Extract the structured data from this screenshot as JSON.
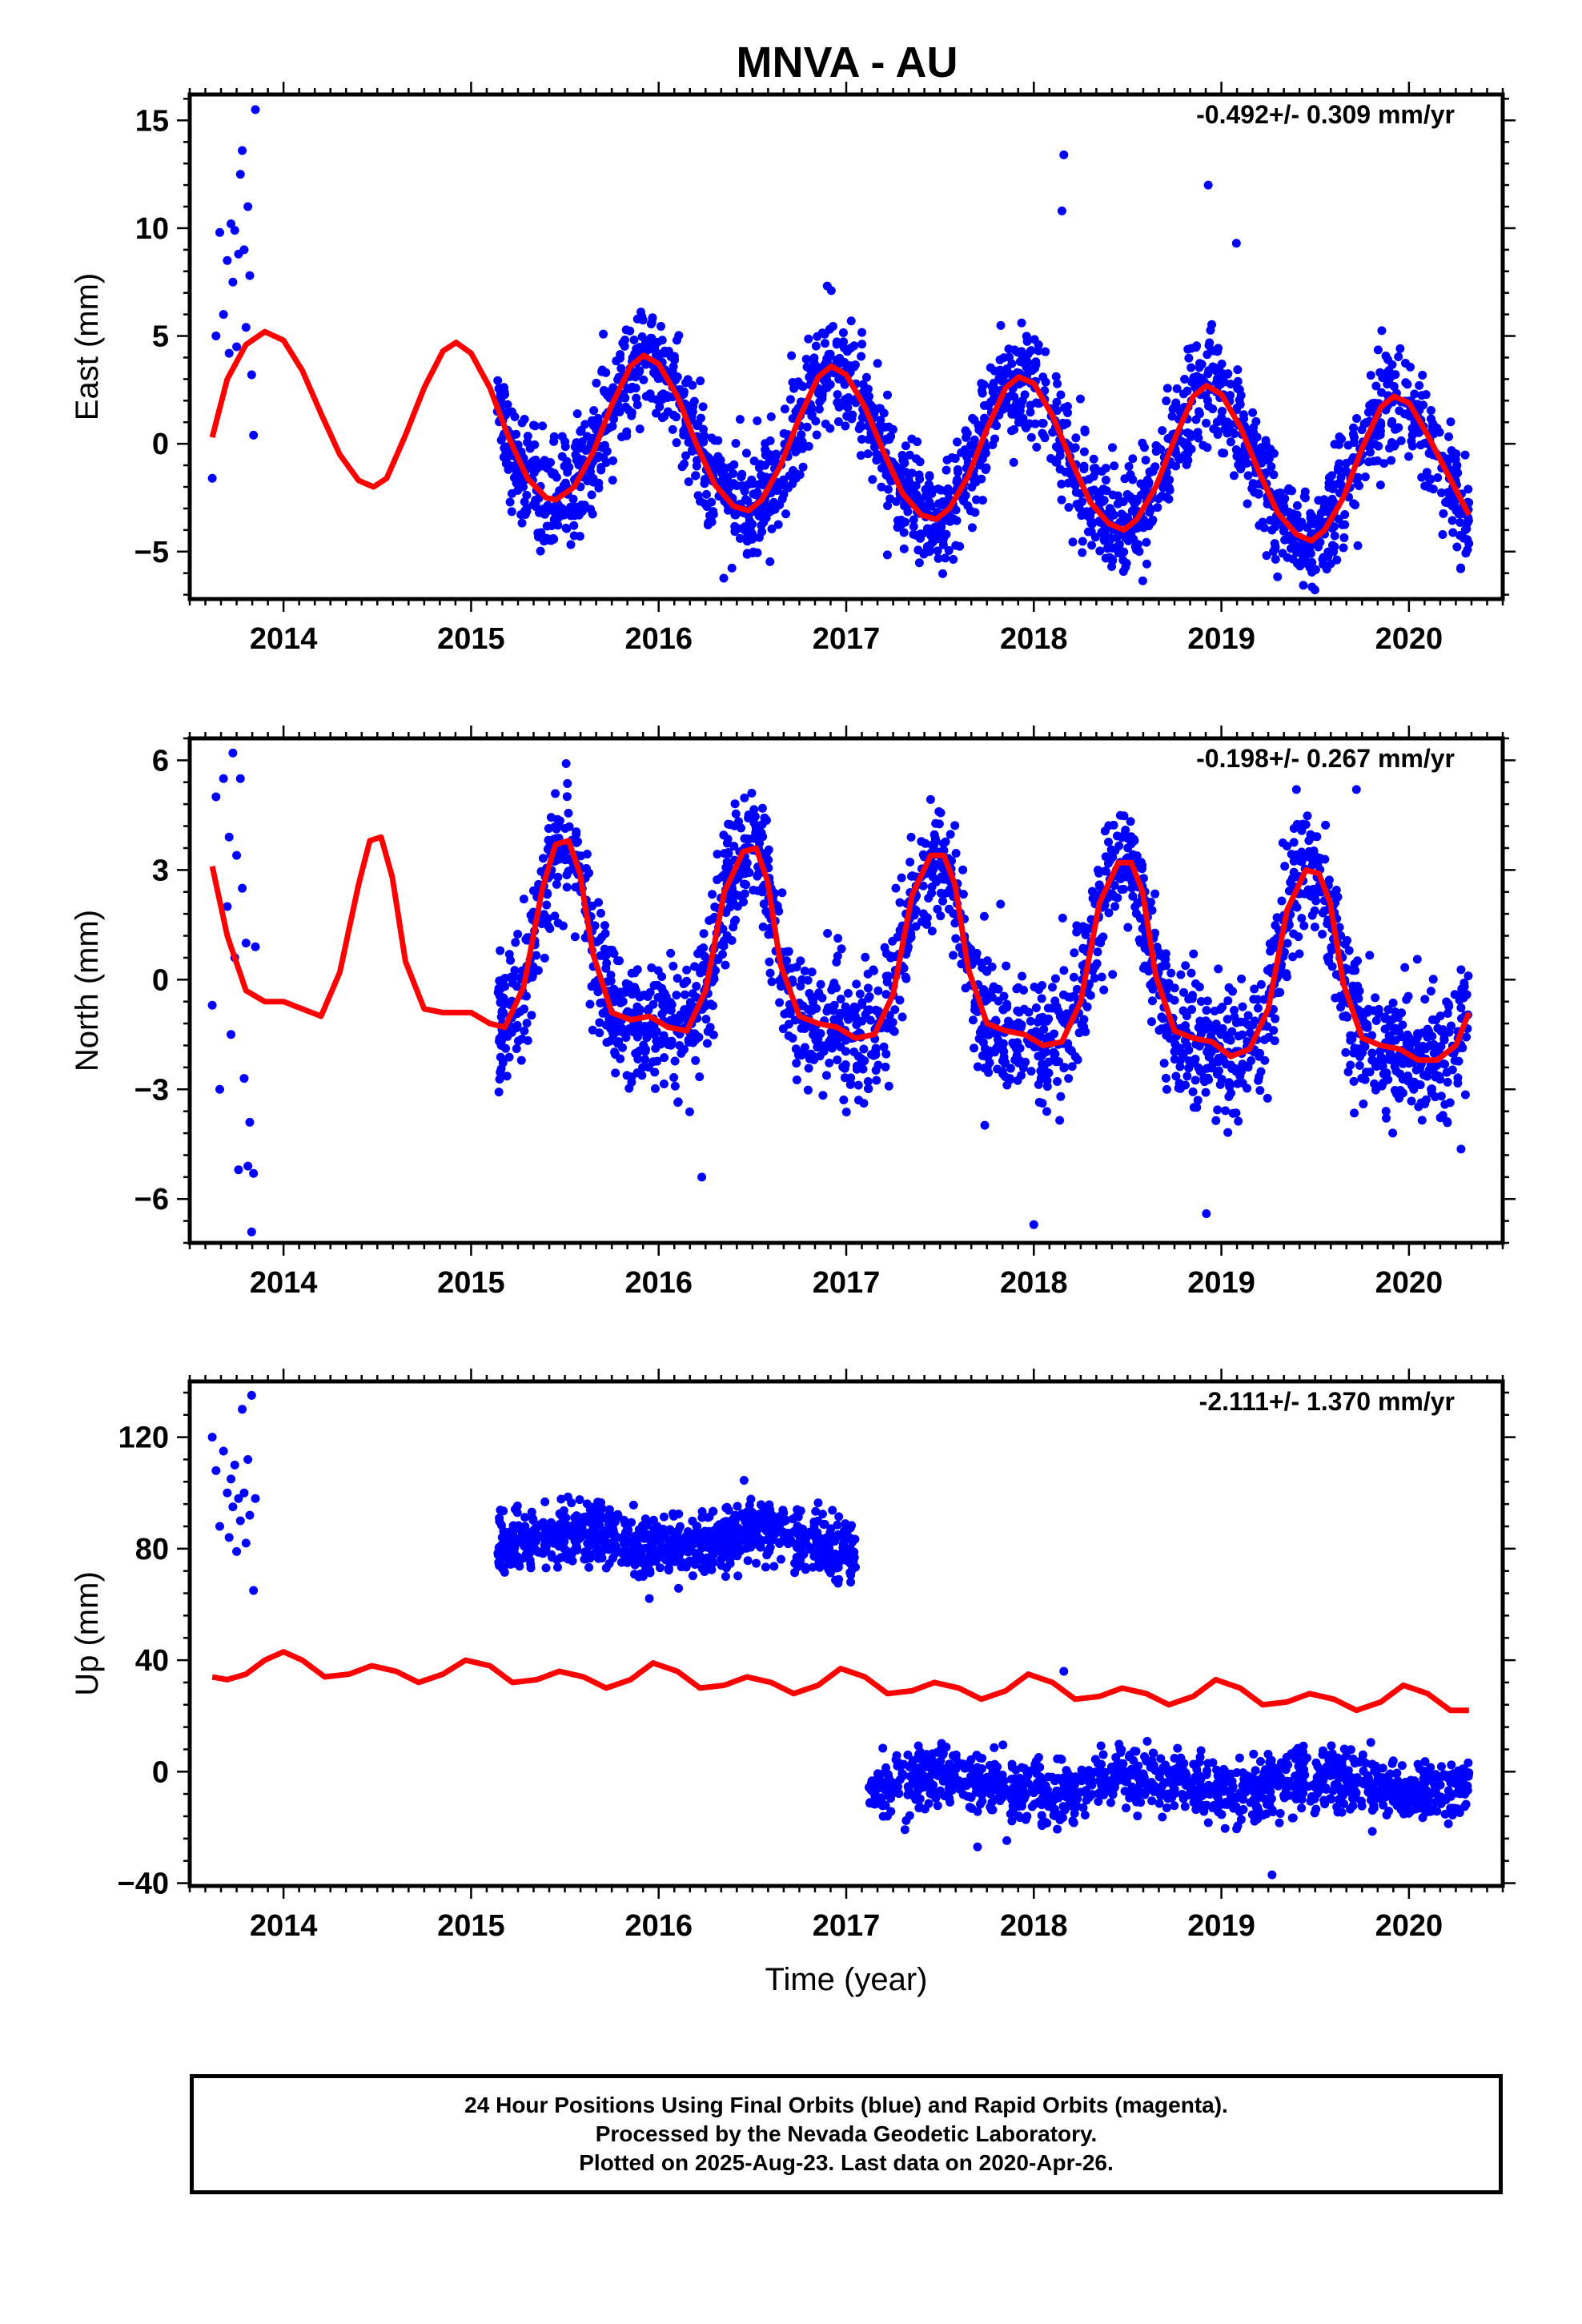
{
  "title": "MNVA - AU",
  "colors": {
    "data": "#0000ff",
    "model": "#ff0000",
    "frame": "#000000"
  },
  "footer": {
    "line1": "24 Hour Positions Using Final Orbits (blue) and Rapid Orbits (magenta).",
    "line2": "Processed by the Nevada Geodetic Laboratory.",
    "line3": "Plotted on 2025-Aug-23. Last data on 2020-Apr-26."
  },
  "chart_data": [
    {
      "type": "scatter",
      "ylabel": "East (mm)",
      "xlabel": "",
      "rate_label": "-0.492+/- 0.309 mm/yr",
      "xlim": [
        2013.5,
        2020.5
      ],
      "ylim": [
        -7.2,
        16.2
      ],
      "xticks": [
        2014,
        2015,
        2016,
        2017,
        2018,
        2019,
        2020
      ],
      "yticks": [
        -5,
        0,
        5,
        10,
        15
      ],
      "series": [
        {
          "kind": "points",
          "x": [
            2013.62,
            2013.64,
            2013.66,
            2013.68,
            2013.7,
            2013.71,
            2013.72,
            2013.73,
            2013.74,
            2013.75,
            2013.76,
            2013.77,
            2013.78,
            2013.79,
            2013.8,
            2013.81,
            2013.82,
            2013.83,
            2013.84,
            2013.85
          ],
          "y": [
            -1.6,
            5.0,
            9.8,
            6.0,
            8.5,
            4.2,
            10.2,
            7.5,
            9.9,
            4.5,
            8.8,
            12.5,
            13.6,
            9.0,
            5.4,
            11.0,
            7.8,
            3.2,
            0.4,
            15.5
          ]
        },
        {
          "kind": "cloud",
          "x_range": [
            2015.14,
            2020.32
          ],
          "n": 2200,
          "amp": 2.6,
          "noise": 1.3,
          "outliers": [
            [
              2018.16,
              13.4
            ],
            [
              2018.15,
              10.8
            ],
            [
              2018.93,
              12.0
            ],
            [
              2019.08,
              9.3
            ]
          ]
        },
        {
          "kind": "model",
          "x": [
            2013.62,
            2013.7,
            2013.8,
            2013.9,
            2014.0,
            2014.1,
            2014.2,
            2014.3,
            2014.4,
            2014.48,
            2014.55,
            2014.65,
            2014.75,
            2014.85,
            2014.92,
            2015.0,
            2015.1,
            2015.2,
            2015.3,
            2015.4,
            2015.45,
            2015.55,
            2015.65,
            2015.75,
            2015.85,
            2015.92,
            2016.0,
            2016.1,
            2016.2,
            2016.3,
            2016.4,
            2016.48,
            2016.55,
            2016.65,
            2016.75,
            2016.85,
            2016.92,
            2017.0,
            2017.1,
            2017.2,
            2017.3,
            2017.4,
            2017.48,
            2017.55,
            2017.65,
            2017.75,
            2017.85,
            2017.92,
            2018.0,
            2018.1,
            2018.2,
            2018.3,
            2018.4,
            2018.48,
            2018.55,
            2018.65,
            2018.75,
            2018.85,
            2018.92,
            2019.0,
            2019.1,
            2019.2,
            2019.3,
            2019.4,
            2019.48,
            2019.55,
            2019.65,
            2019.75,
            2019.85,
            2019.92,
            2020.0,
            2020.1,
            2020.2,
            2020.32
          ],
          "y": [
            0.3,
            3.0,
            4.6,
            5.2,
            4.8,
            3.4,
            1.4,
            -0.5,
            -1.7,
            -2.0,
            -1.6,
            0.4,
            2.6,
            4.3,
            4.7,
            4.2,
            2.6,
            0.3,
            -1.6,
            -2.5,
            -2.6,
            -2.0,
            -0.4,
            1.8,
            3.6,
            4.1,
            3.7,
            2.2,
            0.0,
            -1.9,
            -2.9,
            -3.1,
            -2.6,
            -1.0,
            1.2,
            3.1,
            3.6,
            3.2,
            1.7,
            -0.4,
            -2.3,
            -3.3,
            -3.5,
            -3.0,
            -1.5,
            0.7,
            2.6,
            3.1,
            2.8,
            1.3,
            -0.8,
            -2.7,
            -3.7,
            -4.0,
            -3.5,
            -2.0,
            0.2,
            2.2,
            2.7,
            2.3,
            0.8,
            -1.3,
            -3.2,
            -4.2,
            -4.5,
            -4.0,
            -2.5,
            -0.2,
            1.7,
            2.2,
            1.9,
            0.4,
            -1.3,
            -3.3
          ]
        }
      ]
    },
    {
      "type": "scatter",
      "ylabel": "North (mm)",
      "xlabel": "",
      "rate_label": "-0.198+/- 0.267 mm/yr",
      "xlim": [
        2013.5,
        2020.5
      ],
      "ylim": [
        -7.2,
        6.6
      ],
      "xticks": [
        2014,
        2015,
        2016,
        2017,
        2018,
        2019,
        2020
      ],
      "yticks": [
        -6,
        -3,
        0,
        3,
        6
      ],
      "series": [
        {
          "kind": "points",
          "x": [
            2013.62,
            2013.64,
            2013.66,
            2013.68,
            2013.7,
            2013.71,
            2013.72,
            2013.73,
            2013.74,
            2013.75,
            2013.76,
            2013.77,
            2013.78,
            2013.79,
            2013.8,
            2013.81,
            2013.82,
            2013.83,
            2013.84,
            2013.85
          ],
          "y": [
            -0.7,
            5.0,
            -3.0,
            5.5,
            2.0,
            3.9,
            -1.5,
            6.2,
            0.6,
            3.4,
            -5.2,
            5.5,
            2.5,
            -2.7,
            1.0,
            -5.1,
            -3.9,
            -6.9,
            -5.3,
            0.9
          ]
        },
        {
          "kind": "cloud",
          "x_range": [
            2015.14,
            2020.32
          ],
          "n": 2200,
          "amp": 2.2,
          "noise": 0.9,
          "outliers": [
            [
              2016.23,
              -5.4
            ],
            [
              2018.0,
              -6.7
            ],
            [
              2018.92,
              -6.4
            ],
            [
              2019.4,
              5.2
            ],
            [
              2019.72,
              5.2
            ]
          ]
        },
        {
          "kind": "model",
          "x": [
            2013.62,
            2013.7,
            2013.8,
            2013.9,
            2014.0,
            2014.1,
            2014.2,
            2014.3,
            2014.4,
            2014.46,
            2014.52,
            2014.58,
            2014.65,
            2014.75,
            2014.85,
            2015.0,
            2015.1,
            2015.18,
            2015.28,
            2015.38,
            2015.45,
            2015.52,
            2015.58,
            2015.65,
            2015.75,
            2015.85,
            2015.95,
            2016.05,
            2016.15,
            2016.25,
            2016.35,
            2016.45,
            2016.52,
            2016.58,
            2016.65,
            2016.75,
            2016.85,
            2016.95,
            2017.05,
            2017.15,
            2017.25,
            2017.35,
            2017.45,
            2017.52,
            2017.58,
            2017.65,
            2017.75,
            2017.85,
            2017.95,
            2018.05,
            2018.15,
            2018.25,
            2018.35,
            2018.45,
            2018.52,
            2018.58,
            2018.65,
            2018.75,
            2018.85,
            2018.95,
            2019.05,
            2019.15,
            2019.25,
            2019.35,
            2019.45,
            2019.52,
            2019.58,
            2019.65,
            2019.75,
            2019.85,
            2019.95,
            2020.05,
            2020.15,
            2020.25,
            2020.32
          ],
          "y": [
            3.1,
            1.2,
            -0.3,
            -0.6,
            -0.6,
            -0.8,
            -1.0,
            0.2,
            2.6,
            3.8,
            3.9,
            2.8,
            0.5,
            -0.8,
            -0.9,
            -0.9,
            -1.2,
            -1.3,
            -0.2,
            2.5,
            3.7,
            3.8,
            2.9,
            0.7,
            -0.9,
            -1.1,
            -1.0,
            -1.3,
            -1.4,
            -0.3,
            2.4,
            3.5,
            3.6,
            2.7,
            0.4,
            -1.0,
            -1.2,
            -1.3,
            -1.6,
            -1.5,
            -0.4,
            2.3,
            3.4,
            3.4,
            2.6,
            0.3,
            -1.2,
            -1.4,
            -1.5,
            -1.8,
            -1.7,
            -0.6,
            2.1,
            3.2,
            3.2,
            2.4,
            0.1,
            -1.4,
            -1.6,
            -1.7,
            -2.1,
            -1.9,
            -0.8,
            1.9,
            3.0,
            2.9,
            2.1,
            -0.1,
            -1.6,
            -1.8,
            -1.9,
            -2.2,
            -2.2,
            -1.8,
            -0.9
          ]
        }
      ]
    },
    {
      "type": "scatter",
      "ylabel": "Up (mm)",
      "xlabel": "Time (year)",
      "rate_label": "-2.111+/- 1.370 mm/yr",
      "xlim": [
        2013.5,
        2020.5
      ],
      "ylim": [
        -41,
        140
      ],
      "xticks": [
        2014,
        2015,
        2016,
        2017,
        2018,
        2019,
        2020
      ],
      "yticks": [
        -40,
        0,
        40,
        80,
        120
      ],
      "series": [
        {
          "kind": "points",
          "x": [
            2013.62,
            2013.64,
            2013.66,
            2013.68,
            2013.7,
            2013.71,
            2013.72,
            2013.73,
            2013.74,
            2013.75,
            2013.76,
            2013.77,
            2013.78,
            2013.79,
            2013.8,
            2013.81,
            2013.82,
            2013.83,
            2013.84,
            2013.85
          ],
          "y": [
            120,
            108,
            88,
            115,
            100,
            84,
            105,
            95,
            110,
            79,
            98,
            90,
            130,
            100,
            82,
            112,
            92,
            135,
            65,
            98
          ]
        },
        {
          "kind": "cloud",
          "x_range": [
            2015.14,
            2017.05
          ],
          "n": 900,
          "base": 83,
          "amp": 3,
          "noise": 5.5,
          "outliers": []
        },
        {
          "kind": "cloud",
          "x_range": [
            2017.12,
            2020.32
          ],
          "n": 1200,
          "base": -5,
          "amp": 3,
          "noise": 5.5,
          "outliers": [
            [
              2018.16,
              36
            ],
            [
              2019.27,
              -37
            ],
            [
              2017.7,
              -27
            ]
          ]
        },
        {
          "kind": "model",
          "x": [
            2013.62,
            2013.7,
            2013.8,
            2013.9,
            2014.0,
            2014.1,
            2014.22,
            2014.35,
            2014.47,
            2014.6,
            2014.72,
            2014.85,
            2014.97,
            2015.1,
            2015.22,
            2015.35,
            2015.47,
            2015.6,
            2015.72,
            2015.85,
            2015.97,
            2016.1,
            2016.22,
            2016.35,
            2016.47,
            2016.6,
            2016.72,
            2016.85,
            2016.97,
            2017.1,
            2017.22,
            2017.35,
            2017.47,
            2017.6,
            2017.72,
            2017.85,
            2017.97,
            2018.1,
            2018.22,
            2018.35,
            2018.47,
            2018.6,
            2018.72,
            2018.85,
            2018.97,
            2019.1,
            2019.22,
            2019.35,
            2019.47,
            2019.6,
            2019.72,
            2019.85,
            2019.97,
            2020.1,
            2020.22,
            2020.32
          ],
          "y": [
            34,
            33,
            35,
            40,
            43,
            40,
            34,
            35,
            38,
            36,
            32,
            35,
            40,
            38,
            32,
            33,
            36,
            34,
            30,
            33,
            39,
            36,
            30,
            31,
            34,
            32,
            28,
            31,
            37,
            34,
            28,
            29,
            32,
            30,
            26,
            29,
            35,
            32,
            26,
            27,
            30,
            28,
            24,
            27,
            33,
            30,
            24,
            25,
            28,
            26,
            22,
            25,
            31,
            28,
            22,
            22
          ]
        }
      ]
    }
  ]
}
